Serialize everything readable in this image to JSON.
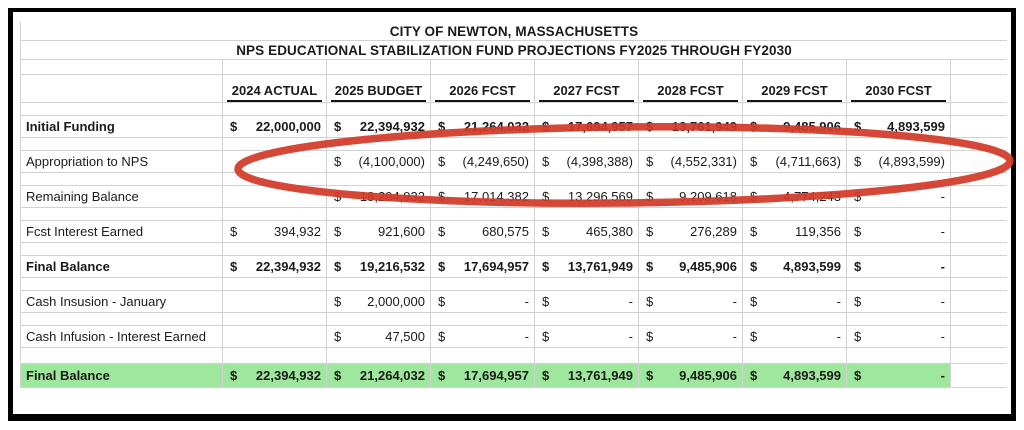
{
  "titles": {
    "line1": "CITY OF NEWTON, MASSACHUSETTS",
    "line2": "NPS EDUCATIONAL STABILIZATION FUND PROJECTIONS FY2025 THROUGH FY2030"
  },
  "columns": [
    "2024 ACTUAL",
    "2025 BUDGET",
    "2026 FCST",
    "2027 FCST",
    "2028 FCST",
    "2029 FCST",
    "2030 FCST"
  ],
  "rows": [
    {
      "label": "Initial Funding",
      "bold": true,
      "highlight": false,
      "cells": [
        {
          "d": "$",
          "v": "22,000,000"
        },
        {
          "d": "$",
          "v": "22,394,932"
        },
        {
          "d": "$",
          "v": "21,264,032"
        },
        {
          "d": "$",
          "v": "17,694,957"
        },
        {
          "d": "$",
          "v": "13,761,949"
        },
        {
          "d": "$",
          "v": "9,485,906"
        },
        {
          "d": "$",
          "v": "4,893,599"
        }
      ]
    },
    {
      "label": "Appropriation to NPS",
      "bold": false,
      "highlight": false,
      "cells": [
        {
          "d": "",
          "v": ""
        },
        {
          "d": "$",
          "v": "(4,100,000)"
        },
        {
          "d": "$",
          "v": "(4,249,650)"
        },
        {
          "d": "$",
          "v": "(4,398,388)"
        },
        {
          "d": "$",
          "v": "(4,552,331)"
        },
        {
          "d": "$",
          "v": "(4,711,663)"
        },
        {
          "d": "$",
          "v": "(4,893,599)"
        }
      ]
    },
    {
      "label": "Remaining Balance",
      "bold": false,
      "highlight": false,
      "cells": [
        {
          "d": "",
          "v": ""
        },
        {
          "d": "$",
          "v": "18,294,932"
        },
        {
          "d": "$",
          "v": "17,014,382"
        },
        {
          "d": "$",
          "v": "13,296,569"
        },
        {
          "d": "$",
          "v": "9,209,618"
        },
        {
          "d": "$",
          "v": "4,774,243"
        },
        {
          "d": "$",
          "v": "-"
        }
      ]
    },
    {
      "label": "Fcst Interest Earned",
      "bold": false,
      "highlight": false,
      "cells": [
        {
          "d": "$",
          "v": "394,932"
        },
        {
          "d": "$",
          "v": "921,600"
        },
        {
          "d": "$",
          "v": "680,575"
        },
        {
          "d": "$",
          "v": "465,380"
        },
        {
          "d": "$",
          "v": "276,289"
        },
        {
          "d": "$",
          "v": "119,356"
        },
        {
          "d": "$",
          "v": "-"
        }
      ]
    },
    {
      "label": "Final Balance",
      "bold": true,
      "highlight": false,
      "cells": [
        {
          "d": "$",
          "v": "22,394,932"
        },
        {
          "d": "$",
          "v": "19,216,532"
        },
        {
          "d": "$",
          "v": "17,694,957"
        },
        {
          "d": "$",
          "v": "13,761,949"
        },
        {
          "d": "$",
          "v": "9,485,906"
        },
        {
          "d": "$",
          "v": "4,893,599"
        },
        {
          "d": "$",
          "v": "-"
        }
      ]
    },
    {
      "label": "Cash Insusion - January",
      "bold": false,
      "highlight": false,
      "cells": [
        {
          "d": "",
          "v": ""
        },
        {
          "d": "$",
          "v": "2,000,000"
        },
        {
          "d": "$",
          "v": "-"
        },
        {
          "d": "$",
          "v": "-"
        },
        {
          "d": "$",
          "v": "-"
        },
        {
          "d": "$",
          "v": "-"
        },
        {
          "d": "$",
          "v": "-"
        }
      ]
    },
    {
      "label": "Cash Infusion - Interest Earned",
      "bold": false,
      "highlight": false,
      "cells": [
        {
          "d": "",
          "v": ""
        },
        {
          "d": "$",
          "v": "47,500"
        },
        {
          "d": "$",
          "v": "-"
        },
        {
          "d": "$",
          "v": "-"
        },
        {
          "d": "$",
          "v": "-"
        },
        {
          "d": "$",
          "v": "-"
        },
        {
          "d": "$",
          "v": "-"
        }
      ]
    },
    {
      "label": "Final Balance",
      "bold": true,
      "highlight": true,
      "cells": [
        {
          "d": "$",
          "v": "22,394,932"
        },
        {
          "d": "$",
          "v": "21,264,032"
        },
        {
          "d": "$",
          "v": "17,694,957"
        },
        {
          "d": "$",
          "v": "13,761,949"
        },
        {
          "d": "$",
          "v": "9,485,906"
        },
        {
          "d": "$",
          "v": "4,893,599"
        },
        {
          "d": "$",
          "v": "-"
        }
      ]
    }
  ],
  "annotation": {
    "shape": "ellipse",
    "target_row": "Appropriation to NPS",
    "color": "#d23a28"
  },
  "colors": {
    "highlight_green": "#9fe79d",
    "annotation_red": "#d23a28",
    "gridline": "#d2d2d2",
    "frame": "#000000"
  }
}
